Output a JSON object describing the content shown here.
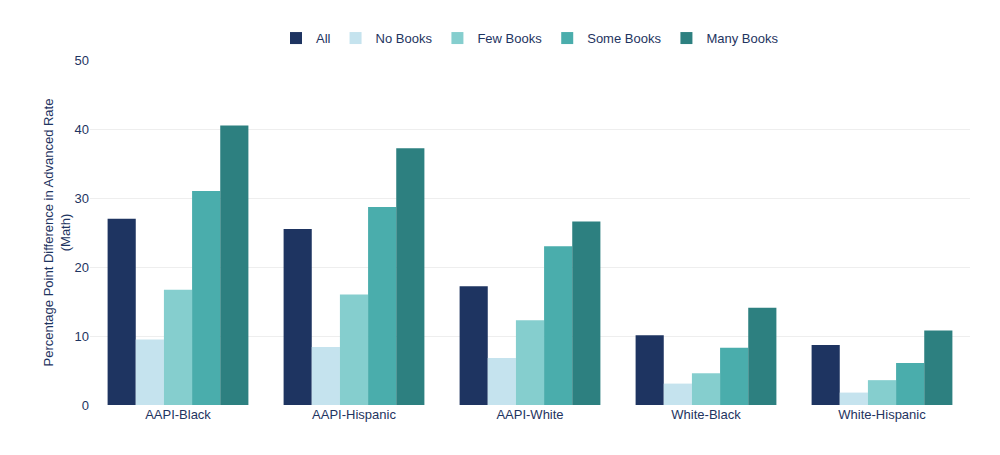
{
  "chart_data": {
    "type": "bar",
    "ylabel": "Percentage Point Difference in Advanced Rate\n(Math)",
    "categories": [
      "AAPI-Black",
      "AAPI-Hispanic",
      "AAPI-White",
      "White-Black",
      "White-Hispanic"
    ],
    "series": [
      {
        "name": "All",
        "color": "#1e3461",
        "values": [
          27,
          25.5,
          17.2,
          10.1,
          8.7
        ]
      },
      {
        "name": "No Books",
        "color": "#c5e3ee",
        "values": [
          9.5,
          8.4,
          6.8,
          3.1,
          1.8
        ]
      },
      {
        "name": "Few Books",
        "color": "#85cece",
        "values": [
          16.7,
          16.0,
          12.3,
          4.6,
          3.6
        ]
      },
      {
        "name": "Some Books",
        "color": "#4aadac",
        "values": [
          31.0,
          28.7,
          23.0,
          8.3,
          6.1
        ]
      },
      {
        "name": "Many Books",
        "color": "#2d8080",
        "values": [
          40.5,
          37.2,
          26.6,
          14.1,
          10.8
        ]
      }
    ],
    "ylim": [
      0,
      50
    ],
    "yticks": [
      0,
      10,
      20,
      30,
      40,
      50
    ],
    "grid": true,
    "legend": "top"
  }
}
